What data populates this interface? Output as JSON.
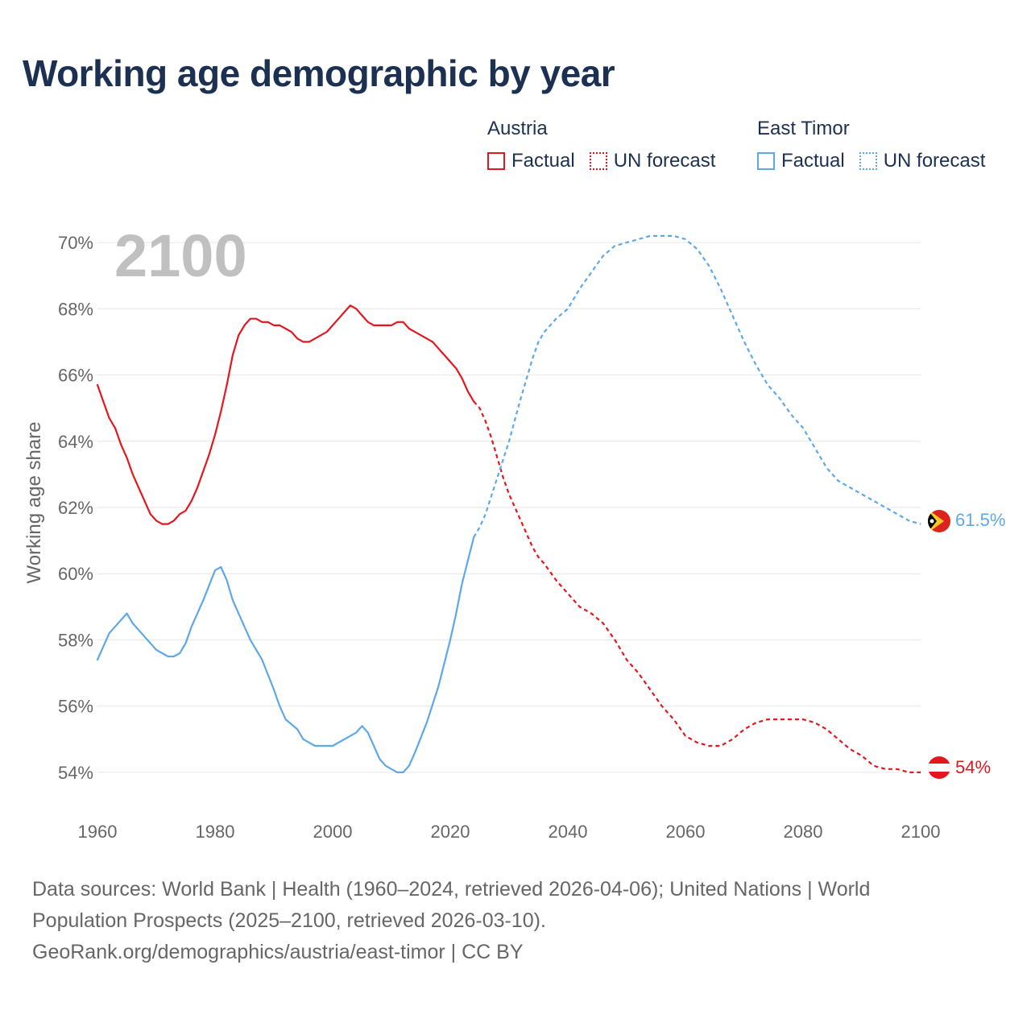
{
  "title": "Working age demographic by year",
  "year_watermark": "2100",
  "legend": {
    "groups": [
      {
        "country": "Austria",
        "factual": "Factual",
        "forecast": "UN forecast",
        "color": "#e5161e"
      },
      {
        "country": "East Timor",
        "factual": "Factual",
        "forecast": "UN forecast",
        "color": "#5ea8e8"
      }
    ]
  },
  "footer": {
    "sources": "Data sources: World Bank | Health (1960–2024, retrieved 2026-04-06); United Nations | World Population Prospects (2025–2100, retrieved 2026-03-10).",
    "credit": "GeoRank.org/demographics/austria/east-timor | CC BY"
  },
  "chart_data": {
    "type": "line",
    "title": "Working age demographic by year",
    "xlabel": "",
    "ylabel": "Working age share",
    "xlim": [
      1960,
      2100
    ],
    "ylim": [
      53,
      71
    ],
    "x_ticks": [
      1960,
      1980,
      2000,
      2020,
      2040,
      2060,
      2080,
      2100
    ],
    "x_tick_labels": [
      "1960",
      "1980",
      "2000",
      "2020",
      "2040",
      "2060",
      "2080",
      "2100"
    ],
    "y_ticks": [
      54,
      56,
      58,
      60,
      62,
      64,
      66,
      68,
      70
    ],
    "y_tick_labels": [
      "54%",
      "56%",
      "58%",
      "60%",
      "62%",
      "64%",
      "66%",
      "68%",
      "70%"
    ],
    "grid": true,
    "series": [
      {
        "name": "Austria",
        "color": "#e5161e",
        "factual": {
          "x": [
            1960,
            1962,
            1963,
            1964,
            1965,
            1966,
            1968,
            1969,
            1970,
            1971,
            1972,
            1973,
            1974,
            1975,
            1976,
            1977,
            1978,
            1979,
            1980,
            1981,
            1982,
            1983,
            1984,
            1985,
            1986,
            1987,
            1988,
            1989,
            1990,
            1991,
            1992,
            1993,
            1994,
            1995,
            1996,
            1997,
            1998,
            1999,
            2000,
            2001,
            2002,
            2003,
            2004,
            2005,
            2006,
            2007,
            2008,
            2009,
            2010,
            2011,
            2012,
            2013,
            2014,
            2015,
            2016,
            2017,
            2018,
            2019,
            2020,
            2021,
            2022,
            2023,
            2024
          ],
          "y": [
            65.7,
            64.7,
            64.4,
            63.9,
            63.5,
            63.0,
            62.2,
            61.8,
            61.6,
            61.5,
            61.5,
            61.6,
            61.8,
            61.9,
            62.2,
            62.6,
            63.1,
            63.6,
            64.2,
            64.9,
            65.7,
            66.6,
            67.2,
            67.5,
            67.7,
            67.7,
            67.6,
            67.6,
            67.5,
            67.5,
            67.4,
            67.3,
            67.1,
            67.0,
            67.0,
            67.1,
            67.2,
            67.3,
            67.5,
            67.7,
            67.9,
            68.1,
            68.0,
            67.8,
            67.6,
            67.5,
            67.5,
            67.5,
            67.5,
            67.6,
            67.6,
            67.4,
            67.3,
            67.2,
            67.1,
            67.0,
            66.8,
            66.6,
            66.4,
            66.2,
            65.9,
            65.5,
            65.2
          ]
        },
        "forecast": {
          "x": [
            2024,
            2025,
            2026,
            2027,
            2028,
            2029,
            2030,
            2032,
            2034,
            2035,
            2036,
            2038,
            2040,
            2042,
            2044,
            2046,
            2048,
            2050,
            2052,
            2054,
            2056,
            2058,
            2060,
            2062,
            2064,
            2066,
            2068,
            2070,
            2072,
            2074,
            2076,
            2078,
            2080,
            2082,
            2084,
            2086,
            2088,
            2090,
            2092,
            2094,
            2096,
            2098,
            2100
          ],
          "y": [
            65.2,
            65.0,
            64.6,
            64.1,
            63.5,
            62.9,
            62.4,
            61.6,
            60.8,
            60.5,
            60.3,
            59.8,
            59.4,
            59.0,
            58.8,
            58.5,
            58.0,
            57.4,
            57.0,
            56.5,
            56.0,
            55.6,
            55.1,
            54.9,
            54.8,
            54.8,
            55.0,
            55.3,
            55.5,
            55.6,
            55.6,
            55.6,
            55.6,
            55.5,
            55.3,
            55.0,
            54.7,
            54.5,
            54.2,
            54.1,
            54.1,
            54.0,
            54.0
          ]
        },
        "end_label": "54%"
      },
      {
        "name": "East Timor",
        "color": "#5ea8e8",
        "factual": {
          "x": [
            1960,
            1962,
            1964,
            1965,
            1966,
            1968,
            1970,
            1972,
            1973,
            1974,
            1975,
            1976,
            1978,
            1980,
            1981,
            1982,
            1983,
            1984,
            1986,
            1988,
            1990,
            1991,
            1992,
            1994,
            1995,
            1996,
            1997,
            1998,
            2000,
            2002,
            2004,
            2005,
            2006,
            2007,
            2008,
            2009,
            2010,
            2011,
            2012,
            2013,
            2014,
            2016,
            2018,
            2020,
            2021,
            2022,
            2023,
            2024
          ],
          "y": [
            57.4,
            58.2,
            58.6,
            58.8,
            58.5,
            58.1,
            57.7,
            57.5,
            57.5,
            57.6,
            57.9,
            58.4,
            59.2,
            60.1,
            60.2,
            59.8,
            59.2,
            58.8,
            58.0,
            57.4,
            56.5,
            56.0,
            55.6,
            55.3,
            55.0,
            54.9,
            54.8,
            54.8,
            54.8,
            55.0,
            55.2,
            55.4,
            55.2,
            54.8,
            54.4,
            54.2,
            54.1,
            54.0,
            54.0,
            54.2,
            54.6,
            55.5,
            56.6,
            58.0,
            58.8,
            59.7,
            60.4,
            61.1
          ]
        },
        "forecast": {
          "x": [
            2024,
            2025,
            2026,
            2028,
            2030,
            2032,
            2034,
            2035,
            2036,
            2038,
            2040,
            2042,
            2044,
            2046,
            2048,
            2050,
            2052,
            2054,
            2056,
            2058,
            2060,
            2062,
            2064,
            2066,
            2068,
            2070,
            2072,
            2074,
            2076,
            2078,
            2080,
            2082,
            2084,
            2086,
            2088,
            2090,
            2092,
            2094,
            2096,
            2098,
            2100
          ],
          "y": [
            61.1,
            61.4,
            61.8,
            62.9,
            64.0,
            65.3,
            66.5,
            67.0,
            67.3,
            67.7,
            68.0,
            68.6,
            69.1,
            69.6,
            69.9,
            70.0,
            70.1,
            70.2,
            70.2,
            70.2,
            70.1,
            69.8,
            69.3,
            68.6,
            67.8,
            67.0,
            66.3,
            65.7,
            65.3,
            64.8,
            64.4,
            63.8,
            63.2,
            62.8,
            62.6,
            62.4,
            62.2,
            62.0,
            61.8,
            61.6,
            61.5
          ]
        },
        "end_label": "61.5%"
      }
    ]
  }
}
